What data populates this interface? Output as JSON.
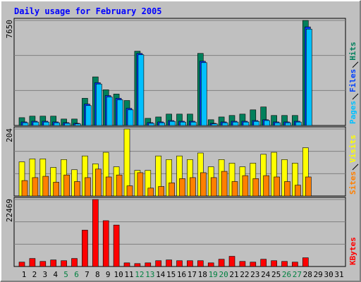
{
  "chart_data": [
    {
      "type": "bar",
      "title": "Daily usage for February 2005",
      "categories": [
        "1",
        "2",
        "3",
        "4",
        "5",
        "6",
        "7",
        "8",
        "9",
        "10",
        "11",
        "12",
        "13",
        "14",
        "15",
        "16",
        "17",
        "18",
        "19",
        "20",
        "21",
        "22",
        "23",
        "24",
        "25",
        "26",
        "27",
        "28",
        "29",
        "30",
        "31"
      ],
      "category_colors": [
        "#000000",
        "#000000",
        "#000000",
        "#000000",
        "#008040",
        "#008040",
        "#000000",
        "#000000",
        "#000000",
        "#000000",
        "#000000",
        "#008040",
        "#008040",
        "#000000",
        "#000000",
        "#000000",
        "#000000",
        "#000000",
        "#008040",
        "#008040",
        "#000000",
        "#000000",
        "#000000",
        "#000000",
        "#000000",
        "#008040",
        "#008040",
        "#000000",
        "#000000",
        "#000000",
        "#000000"
      ],
      "ylim": [
        0,
        7650
      ],
      "yticks": [
        7650
      ],
      "grid": true,
      "series": [
        {
          "name": "Hits",
          "color": "#00805c",
          "values": [
            570,
            680,
            680,
            680,
            470,
            470,
            1980,
            3540,
            2600,
            2290,
            1820,
            5410,
            520,
            620,
            830,
            830,
            830,
            5250,
            420,
            620,
            730,
            830,
            1140,
            1350,
            730,
            730,
            730,
            7650,
            null,
            null,
            null
          ]
        },
        {
          "name": "Files",
          "color": "#0040ff",
          "values": [
            260,
            310,
            310,
            260,
            210,
            160,
            1560,
            3120,
            2180,
            1980,
            1250,
            5250,
            210,
            260,
            360,
            310,
            310,
            4680,
            160,
            260,
            310,
            310,
            360,
            420,
            260,
            260,
            310,
            7180,
            null,
            null,
            null
          ]
        },
        {
          "name": "Pages",
          "color": "#00c0ff",
          "values": [
            200,
            250,
            250,
            200,
            160,
            120,
            1450,
            3020,
            2080,
            1870,
            1140,
            5150,
            160,
            200,
            300,
            250,
            250,
            4580,
            120,
            200,
            250,
            250,
            300,
            360,
            200,
            200,
            250,
            7020,
            null,
            null,
            null
          ]
        }
      ]
    },
    {
      "type": "bar",
      "ylim": [
        0,
        204
      ],
      "yticks": [
        204
      ],
      "grid": true,
      "series": [
        {
          "name": "Visits",
          "color": "#ffff00",
          "values": [
            104,
            113,
            113,
            87,
            111,
            80,
            122,
            98,
            133,
            89,
            204,
            78,
            78,
            122,
            111,
            122,
            111,
            131,
            89,
            111,
            100,
            89,
            100,
            127,
            133,
            111,
            100,
            147,
            null,
            null,
            null
          ]
        },
        {
          "name": "Sites",
          "color": "#ff8000",
          "values": [
            47,
            56,
            60,
            42,
            64,
            44,
            56,
            82,
            58,
            64,
            31,
            71,
            24,
            29,
            40,
            53,
            56,
            71,
            56,
            75,
            44,
            62,
            53,
            62,
            58,
            44,
            33,
            58,
            null,
            null,
            null
          ]
        }
      ]
    },
    {
      "type": "bar",
      "ylim": [
        0,
        22469
      ],
      "yticks": [
        22469
      ],
      "grid": true,
      "series": [
        {
          "name": "KBytes",
          "color": "#ff0000",
          "values": [
            1470,
            2690,
            1710,
            2200,
            1950,
            2690,
            12200,
            22469,
            15370,
            13910,
            1220,
            980,
            1220,
            1950,
            2200,
            1950,
            1950,
            1950,
            1220,
            2440,
            3420,
            1710,
            1470,
            2440,
            1950,
            1710,
            1470,
            2930,
            null,
            null,
            null
          ]
        }
      ]
    }
  ]
}
